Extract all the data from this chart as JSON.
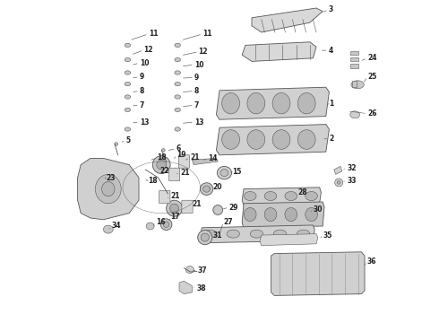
{
  "title": "",
  "background_color": "#ffffff",
  "fig_width": 4.9,
  "fig_height": 3.6,
  "dpi": 100,
  "line_color": "#555555",
  "leader_color": "#555555",
  "label_fontsize": 5.5,
  "label_color": "#222222",
  "leader_lw": 0.45
}
